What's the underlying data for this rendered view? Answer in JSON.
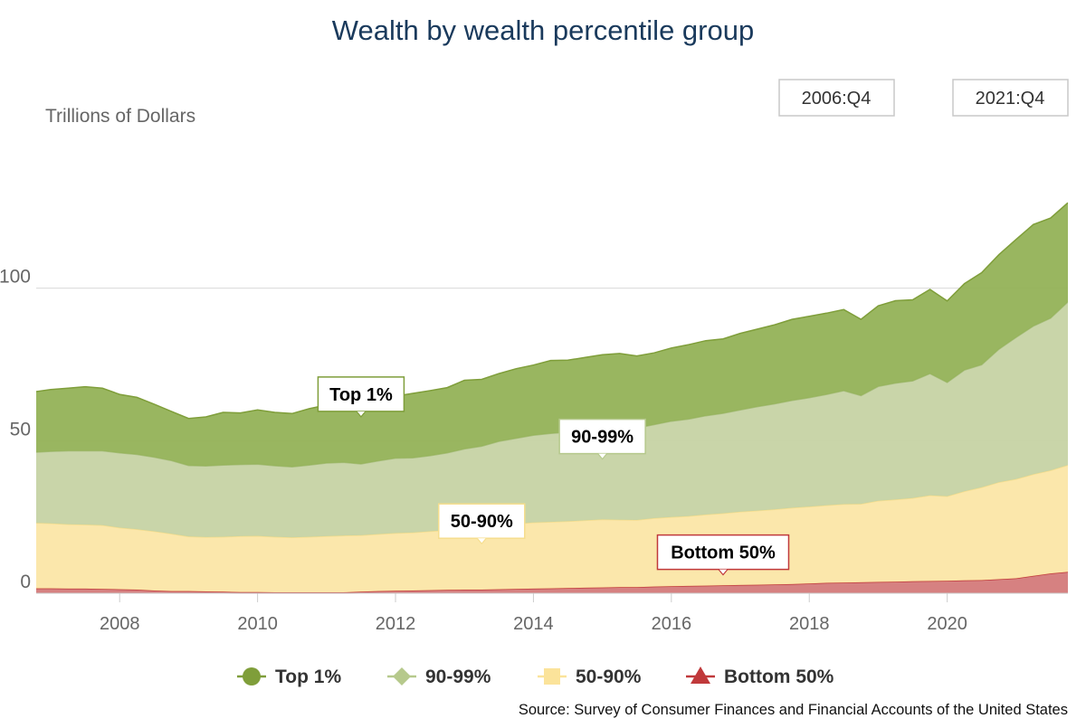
{
  "chart_data": {
    "type": "area",
    "stacked": true,
    "title": "Wealth by wealth percentile group",
    "ylabel": "Trillions of Dollars",
    "xlabel": "",
    "source": "Source: Survey of Consumer Finances and Financial Accounts of the United States",
    "range_buttons": [
      "2006:Q4",
      "2021:Q4"
    ],
    "xlim": [
      2006.79,
      2021.75
    ],
    "ylim": [
      0,
      150
    ],
    "yticks": [
      0,
      50,
      100
    ],
    "xticks": [
      2008,
      2010,
      2012,
      2014,
      2016,
      2018,
      2020
    ],
    "grid": true,
    "legend_position": "bottom",
    "x": [
      2006.75,
      2007.0,
      2007.25,
      2007.5,
      2007.75,
      2008.0,
      2008.25,
      2008.5,
      2008.75,
      2009.0,
      2009.25,
      2009.5,
      2009.75,
      2010.0,
      2010.25,
      2010.5,
      2010.75,
      2011.0,
      2011.25,
      2011.5,
      2011.75,
      2012.0,
      2012.25,
      2012.5,
      2012.75,
      2013.0,
      2013.25,
      2013.5,
      2013.75,
      2014.0,
      2014.25,
      2014.5,
      2014.75,
      2015.0,
      2015.25,
      2015.5,
      2015.75,
      2016.0,
      2016.25,
      2016.5,
      2016.75,
      2017.0,
      2017.25,
      2017.5,
      2017.75,
      2018.0,
      2018.25,
      2018.5,
      2018.75,
      2019.0,
      2019.25,
      2019.5,
      2019.75,
      2020.0,
      2020.25,
      2020.5,
      2020.75,
      2021.0,
      2021.25,
      2021.5,
      2021.75
    ],
    "series": [
      {
        "name": "Bottom 50%",
        "color": "#c0393b",
        "fill": "#d47a7a",
        "marker": "triangle",
        "values": [
          1.6,
          1.6,
          1.5,
          1.5,
          1.4,
          1.3,
          1.2,
          0.9,
          0.7,
          0.7,
          0.6,
          0.5,
          0.4,
          0.4,
          0.3,
          0.3,
          0.3,
          0.3,
          0.3,
          0.5,
          0.7,
          0.8,
          0.9,
          1.0,
          1.1,
          1.2,
          1.2,
          1.3,
          1.4,
          1.5,
          1.6,
          1.7,
          1.8,
          1.9,
          2.0,
          2.0,
          2.2,
          2.3,
          2.4,
          2.5,
          2.6,
          2.7,
          2.8,
          2.9,
          3.0,
          3.2,
          3.4,
          3.5,
          3.6,
          3.7,
          3.8,
          3.9,
          4.0,
          4.1,
          4.2,
          4.3,
          4.6,
          4.9,
          5.7,
          6.5,
          7.0
        ]
      },
      {
        "name": "50-90%",
        "color": "#f6de8e",
        "fill": "#fbe6a6",
        "marker": "square",
        "values": [
          21.5,
          21.3,
          21.1,
          21.0,
          20.9,
          20.2,
          19.8,
          19.4,
          18.8,
          17.9,
          17.8,
          18.0,
          18.3,
          18.4,
          18.2,
          18.0,
          18.2,
          18.4,
          18.6,
          18.5,
          18.7,
          18.9,
          19.0,
          19.3,
          19.6,
          20.0,
          20.6,
          21.0,
          21.4,
          21.7,
          21.8,
          21.9,
          22.1,
          22.3,
          22.1,
          22.0,
          22.4,
          22.7,
          22.9,
          23.3,
          23.6,
          24.0,
          24.3,
          24.6,
          25.0,
          25.2,
          25.4,
          25.7,
          25.7,
          26.6,
          26.9,
          27.3,
          28.1,
          27.7,
          29.2,
          30.4,
          31.8,
          32.5,
          33.3,
          33.8,
          35.0
        ]
      },
      {
        "name": "90-99%",
        "color": "#a6bd7a",
        "fill": "#c6d3a4",
        "marker": "diamond",
        "values": [
          23.1,
          23.6,
          24.1,
          24.2,
          24.4,
          24.5,
          24.5,
          24.3,
          24.0,
          23.3,
          23.3,
          23.5,
          23.5,
          23.5,
          23.3,
          23.1,
          23.5,
          24.0,
          24.0,
          23.4,
          24.0,
          24.6,
          24.5,
          24.8,
          25.3,
          26.1,
          26.4,
          27.5,
          28.0,
          28.6,
          29.0,
          29.2,
          29.6,
          30.1,
          30.5,
          30.2,
          30.7,
          31.4,
          31.8,
          32.4,
          32.8,
          33.4,
          34.1,
          34.6,
          35.2,
          35.7,
          36.4,
          37.2,
          35.5,
          37.5,
          38.2,
          38.4,
          39.9,
          37.3,
          39.8,
          40.2,
          43.6,
          46.5,
          48.6,
          49.9,
          53.5
        ]
      },
      {
        "name": "Top 1%",
        "color": "#7f9e3a",
        "fill": "#93b257",
        "marker": "circle",
        "values": [
          19.8,
          20.3,
          20.5,
          21.0,
          20.5,
          19.2,
          18.7,
          17.4,
          16.1,
          15.4,
          16.1,
          17.3,
          16.9,
          17.8,
          17.5,
          17.5,
          18.5,
          19.0,
          20.4,
          21.4,
          20.5,
          20.3,
          21.1,
          21.3,
          21.4,
          22.5,
          21.9,
          22.2,
          22.8,
          23.0,
          23.9,
          23.6,
          23.8,
          23.9,
          24.0,
          23.6,
          23.5,
          24.0,
          24.4,
          24.6,
          24.4,
          25.1,
          25.4,
          25.9,
          26.6,
          26.7,
          26.6,
          26.6,
          25.0,
          26.4,
          27.0,
          26.6,
          27.6,
          26.7,
          28.3,
          30.2,
          31.0,
          32.1,
          33.3,
          32.8,
          32.5
        ]
      }
    ],
    "legend": [
      {
        "name": "Top 1%",
        "color": "#7f9e3a",
        "marker": "circle"
      },
      {
        "name": "90-99%",
        "color": "#b6c98c",
        "marker": "diamond"
      },
      {
        "name": "50-90%",
        "color": "#fbe39a",
        "marker": "square"
      },
      {
        "name": "Bottom 50%",
        "color": "#c0393b",
        "marker": "triangle"
      }
    ],
    "annotations": [
      {
        "text": "Top 1%",
        "series": "Top 1%",
        "x": 2011.5,
        "border": "#7f9e3a"
      },
      {
        "text": "90-99%",
        "series": "90-99%",
        "x": 2015.0,
        "border": "#b6c98c"
      },
      {
        "text": "50-90%",
        "series": "50-90%",
        "x": 2013.25,
        "border": "#f6de8e"
      },
      {
        "text": "Bottom 50%",
        "series": "Bottom 50%",
        "x": 2016.75,
        "border": "#c0393b"
      }
    ]
  }
}
